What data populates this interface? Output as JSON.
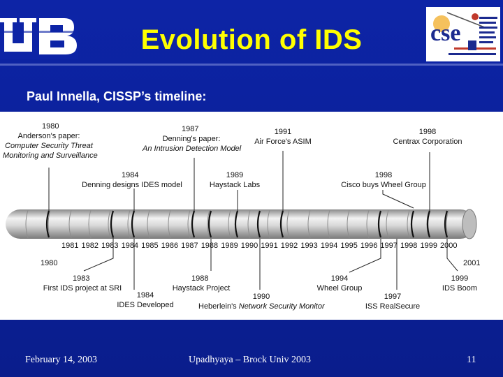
{
  "slide": {
    "title": "Evolution of IDS",
    "subtitle": "Paul Innella, CISSP’s timeline:",
    "footer_date": "February 14, 2003",
    "footer_center": "Upadhyaya – Brock Univ 2003",
    "page_number": "11"
  },
  "logos": {
    "left": "UB",
    "right": "cse"
  },
  "timeline": {
    "years_axis": "1981 1982 1983 1984 1985 1986 1987 1988 1989 1990 1991 1992 1993 1994 1995 1996 1997 1998 1999 2000",
    "start_label": "1980",
    "end_label": "2001",
    "top_events": [
      {
        "year": "1980",
        "l1": "Anderson's paper:",
        "l2": "Computer Security Threat",
        "l3": "Monitoring and Surveillance"
      },
      {
        "year": "1987",
        "l1": "Denning's paper:",
        "l2": "An Intrusion Detection Model"
      },
      {
        "year": "1991",
        "l1": "Air Force's ASIM"
      },
      {
        "year": "1998",
        "l1": "Centrax Corporation"
      },
      {
        "year": "1984",
        "l1": "Denning designs IDES model"
      },
      {
        "year": "1989",
        "l1": "Haystack Labs"
      },
      {
        "year": "1998",
        "l1": "Cisco buys Wheel Group"
      }
    ],
    "bottom_events": [
      {
        "year": "1983",
        "l1": "First IDS project at SRI"
      },
      {
        "year": "1984",
        "l1": "IDES Developed"
      },
      {
        "year": "1988",
        "l1": "Haystack Project"
      },
      {
        "year": "1990",
        "l1": "Heberlein's",
        "l2": "Network Security Monitor"
      },
      {
        "year": "1994",
        "l1": "Wheel Group"
      },
      {
        "year": "1997",
        "l1": "ISS RealSecure"
      },
      {
        "year": "1999",
        "l1": "IDS Boom"
      }
    ]
  }
}
